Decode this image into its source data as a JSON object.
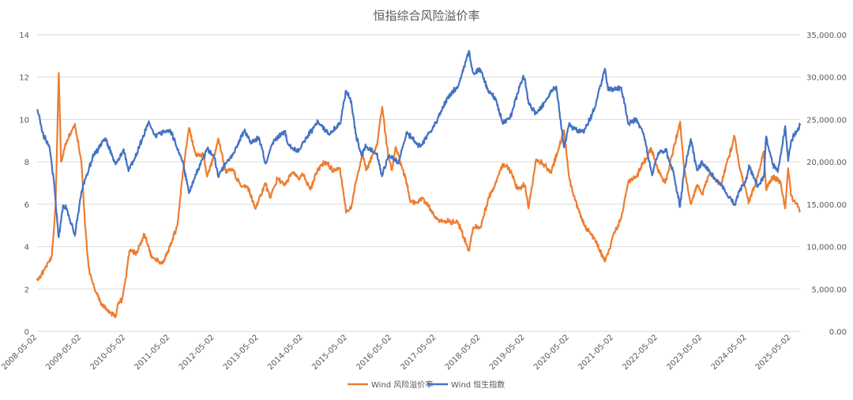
{
  "chart_data": {
    "type": "line",
    "title": "恒指综合风险溢价率",
    "y_left": {
      "min": 0,
      "max": 14,
      "step": 2,
      "tick_labels": [
        "0",
        "2",
        "4",
        "6",
        "8",
        "10",
        "12",
        "14"
      ]
    },
    "y_right": {
      "min": 0,
      "max": 35000,
      "step": 5000,
      "tick_labels": [
        "0.00",
        "5,000.00",
        "10,000.00",
        "15,000.00",
        "20,000.00",
        "25,000.00",
        "30,000.00",
        "35,000.00"
      ]
    },
    "x_tick_labels": [
      "2008-05-02",
      "2009-05-02",
      "2010-05-02",
      "2011-05-02",
      "2012-05-02",
      "2013-05-02",
      "2014-05-02",
      "2015-05-02",
      "2016-05-02",
      "2017-05-02",
      "2018-05-02",
      "2019-05-02",
      "2020-05-02",
      "2021-05-02",
      "2022-05-02",
      "2023-05-02",
      "2024-05-02",
      "2025-05-02"
    ],
    "x_range": [
      "2008-05-02",
      "2025-07-15"
    ],
    "grid": true,
    "legend_position": "bottom",
    "series": [
      {
        "name": "Wind 风险溢价率",
        "axis": "left",
        "color": "#ED7D31",
        "points": [
          [
            "2008-05-02",
            2.4
          ],
          [
            "2008-07-01",
            2.9
          ],
          [
            "2008-09-01",
            3.6
          ],
          [
            "2008-10-01",
            5.9
          ],
          [
            "2008-10-27",
            12.2
          ],
          [
            "2008-11-15",
            8.0
          ],
          [
            "2009-01-01",
            9.0
          ],
          [
            "2009-03-09",
            9.8
          ],
          [
            "2009-05-02",
            8.0
          ],
          [
            "2009-06-01",
            5.0
          ],
          [
            "2009-07-01",
            3.0
          ],
          [
            "2009-08-01",
            2.3
          ],
          [
            "2009-10-01",
            1.4
          ],
          [
            "2009-12-01",
            1.0
          ],
          [
            "2010-02-08",
            0.7
          ],
          [
            "2010-03-01",
            1.3
          ],
          [
            "2010-04-01",
            1.5
          ],
          [
            "2010-05-02",
            2.5
          ],
          [
            "2010-06-01",
            3.8
          ],
          [
            "2010-08-01",
            3.7
          ],
          [
            "2010-10-01",
            4.6
          ],
          [
            "2010-12-01",
            3.5
          ],
          [
            "2011-03-01",
            3.2
          ],
          [
            "2011-05-02",
            4.0
          ],
          [
            "2011-07-01",
            5.0
          ],
          [
            "2011-08-15",
            7.5
          ],
          [
            "2011-10-04",
            9.6
          ],
          [
            "2011-12-01",
            8.3
          ],
          [
            "2012-02-01",
            8.3
          ],
          [
            "2012-03-01",
            7.3
          ],
          [
            "2012-05-02",
            8.3
          ],
          [
            "2012-06-01",
            9.1
          ],
          [
            "2012-08-01",
            7.6
          ],
          [
            "2012-10-01",
            7.6
          ],
          [
            "2012-12-01",
            6.9
          ],
          [
            "2013-02-01",
            6.8
          ],
          [
            "2013-04-01",
            5.8
          ],
          [
            "2013-05-02",
            6.2
          ],
          [
            "2013-06-25",
            7.0
          ],
          [
            "2013-08-01",
            6.3
          ],
          [
            "2013-10-01",
            7.2
          ],
          [
            "2013-12-01",
            6.9
          ],
          [
            "2014-02-01",
            7.5
          ],
          [
            "2014-04-01",
            7.2
          ],
          [
            "2014-05-02",
            7.4
          ],
          [
            "2014-07-01",
            6.7
          ],
          [
            "2014-09-01",
            7.7
          ],
          [
            "2014-11-01",
            8.0
          ],
          [
            "2015-01-01",
            7.6
          ],
          [
            "2015-03-01",
            7.7
          ],
          [
            "2015-04-20",
            5.6
          ],
          [
            "2015-06-01",
            5.8
          ],
          [
            "2015-07-08",
            7.0
          ],
          [
            "2015-09-01",
            8.4
          ],
          [
            "2015-10-01",
            7.6
          ],
          [
            "2016-01-01",
            8.8
          ],
          [
            "2016-02-11",
            10.6
          ],
          [
            "2016-04-01",
            8.3
          ],
          [
            "2016-05-02",
            7.6
          ],
          [
            "2016-06-01",
            8.7
          ],
          [
            "2016-09-01",
            7.0
          ],
          [
            "2016-10-01",
            6.1
          ],
          [
            "2016-12-01",
            6.1
          ],
          [
            "2017-01-01",
            6.3
          ],
          [
            "2017-03-01",
            5.9
          ],
          [
            "2017-05-02",
            5.3
          ],
          [
            "2017-08-01",
            5.2
          ],
          [
            "2017-11-01",
            5.1
          ],
          [
            "2018-01-26",
            3.8
          ],
          [
            "2018-03-01",
            4.9
          ],
          [
            "2018-05-02",
            4.9
          ],
          [
            "2018-07-01",
            6.2
          ],
          [
            "2018-09-01",
            7.0
          ],
          [
            "2018-10-30",
            7.9
          ],
          [
            "2019-01-01",
            7.6
          ],
          [
            "2019-03-01",
            6.7
          ],
          [
            "2019-05-02",
            6.9
          ],
          [
            "2019-06-01",
            5.8
          ],
          [
            "2019-08-01",
            8.1
          ],
          [
            "2019-10-01",
            7.9
          ],
          [
            "2019-12-01",
            7.5
          ],
          [
            "2020-02-01",
            8.6
          ],
          [
            "2020-03-19",
            9.5
          ],
          [
            "2020-05-02",
            7.2
          ],
          [
            "2020-06-01",
            6.5
          ],
          [
            "2020-09-01",
            5.0
          ],
          [
            "2020-12-01",
            4.3
          ],
          [
            "2021-02-18",
            3.3
          ],
          [
            "2021-04-01",
            3.9
          ],
          [
            "2021-05-02",
            4.6
          ],
          [
            "2021-07-01",
            5.3
          ],
          [
            "2021-09-01",
            7.1
          ],
          [
            "2021-11-01",
            7.3
          ],
          [
            "2022-01-01",
            7.9
          ],
          [
            "2022-03-01",
            8.6
          ],
          [
            "2022-03-15",
            8.5
          ],
          [
            "2022-05-02",
            7.6
          ],
          [
            "2022-07-01",
            7.0
          ],
          [
            "2022-10-31",
            9.9
          ],
          [
            "2022-12-01",
            7.8
          ],
          [
            "2023-01-27",
            6.0
          ],
          [
            "2023-03-20",
            6.9
          ],
          [
            "2023-05-02",
            6.5
          ],
          [
            "2023-07-01",
            7.5
          ],
          [
            "2023-10-01",
            6.9
          ],
          [
            "2024-01-22",
            9.2
          ],
          [
            "2024-03-01",
            7.8
          ],
          [
            "2024-05-02",
            6.5
          ],
          [
            "2024-05-20",
            6.1
          ],
          [
            "2024-08-01",
            7.3
          ],
          [
            "2024-09-20",
            8.5
          ],
          [
            "2024-10-08",
            6.7
          ],
          [
            "2024-12-01",
            7.3
          ],
          [
            "2025-02-01",
            7.1
          ],
          [
            "2025-03-14",
            5.8
          ],
          [
            "2025-04-08",
            7.7
          ],
          [
            "2025-05-02",
            6.4
          ],
          [
            "2025-07-15",
            5.7
          ]
        ]
      },
      {
        "name": "Wind 恒生指数",
        "axis": "right",
        "color": "#4472C4",
        "points": [
          [
            "2008-05-02",
            26200
          ],
          [
            "2008-06-15",
            23500
          ],
          [
            "2008-07-15",
            22500
          ],
          [
            "2008-08-15",
            21500
          ],
          [
            "2008-09-15",
            18000
          ],
          [
            "2008-10-27",
            11100
          ],
          [
            "2008-12-01",
            14800
          ],
          [
            "2009-01-01",
            14500
          ],
          [
            "2009-03-09",
            11300
          ],
          [
            "2009-05-02",
            16500
          ],
          [
            "2009-06-01",
            17900
          ],
          [
            "2009-08-01",
            20500
          ],
          [
            "2009-11-15",
            22800
          ],
          [
            "2010-02-08",
            19700
          ],
          [
            "2010-04-15",
            21500
          ],
          [
            "2010-05-25",
            18900
          ],
          [
            "2010-08-01",
            21000
          ],
          [
            "2010-11-08",
            24800
          ],
          [
            "2011-01-01",
            23000
          ],
          [
            "2011-03-01",
            23500
          ],
          [
            "2011-05-02",
            23800
          ],
          [
            "2011-08-15",
            20000
          ],
          [
            "2011-10-04",
            16300
          ],
          [
            "2011-12-01",
            18500
          ],
          [
            "2012-03-01",
            21500
          ],
          [
            "2012-05-02",
            20500
          ],
          [
            "2012-06-01",
            18300
          ],
          [
            "2012-08-01",
            19800
          ],
          [
            "2012-10-01",
            21000
          ],
          [
            "2013-01-02",
            23600
          ],
          [
            "2013-03-01",
            22200
          ],
          [
            "2013-05-02",
            22900
          ],
          [
            "2013-06-25",
            19800
          ],
          [
            "2013-09-01",
            22500
          ],
          [
            "2013-12-01",
            23500
          ],
          [
            "2014-01-01",
            22000
          ],
          [
            "2014-03-14",
            21200
          ],
          [
            "2014-05-02",
            22300
          ],
          [
            "2014-07-01",
            23500
          ],
          [
            "2014-09-01",
            24800
          ],
          [
            "2014-12-01",
            23300
          ],
          [
            "2015-03-01",
            24500
          ],
          [
            "2015-04-20",
            28400
          ],
          [
            "2015-06-01",
            27200
          ],
          [
            "2015-07-08",
            23300
          ],
          [
            "2015-08-24",
            20800
          ],
          [
            "2015-10-01",
            21800
          ],
          [
            "2016-01-01",
            21000
          ],
          [
            "2016-02-11",
            18300
          ],
          [
            "2016-04-01",
            20700
          ],
          [
            "2016-05-02",
            20600
          ],
          [
            "2016-06-24",
            19800
          ],
          [
            "2016-09-01",
            23500
          ],
          [
            "2016-12-01",
            22000
          ],
          [
            "2017-01-01",
            22000
          ],
          [
            "2017-05-02",
            24700
          ],
          [
            "2017-08-01",
            27500
          ],
          [
            "2017-11-01",
            29000
          ],
          [
            "2018-01-26",
            33100
          ],
          [
            "2018-03-01",
            30500
          ],
          [
            "2018-05-02",
            30900
          ],
          [
            "2018-07-01",
            28500
          ],
          [
            "2018-09-01",
            27500
          ],
          [
            "2018-10-30",
            24600
          ],
          [
            "2019-01-01",
            25300
          ],
          [
            "2019-04-15",
            30000
          ],
          [
            "2019-05-02",
            29800
          ],
          [
            "2019-06-01",
            26900
          ],
          [
            "2019-08-01",
            25700
          ],
          [
            "2019-10-01",
            26700
          ],
          [
            "2019-12-01",
            28200
          ],
          [
            "2020-01-15",
            28900
          ],
          [
            "2020-03-19",
            21700
          ],
          [
            "2020-05-02",
            24600
          ],
          [
            "2020-06-01",
            24000
          ],
          [
            "2020-09-01",
            23500
          ],
          [
            "2020-12-01",
            26500
          ],
          [
            "2021-02-18",
            31000
          ],
          [
            "2021-03-15",
            28700
          ],
          [
            "2021-05-02",
            28500
          ],
          [
            "2021-07-01",
            28800
          ],
          [
            "2021-09-01",
            24500
          ],
          [
            "2021-11-01",
            25000
          ],
          [
            "2022-01-01",
            23400
          ],
          [
            "2022-03-15",
            18400
          ],
          [
            "2022-05-02",
            21000
          ],
          [
            "2022-07-01",
            21500
          ],
          [
            "2022-09-01",
            19000
          ],
          [
            "2022-10-31",
            14700
          ],
          [
            "2022-12-01",
            18700
          ],
          [
            "2023-01-27",
            22700
          ],
          [
            "2023-03-20",
            19000
          ],
          [
            "2023-05-02",
            19900
          ],
          [
            "2023-07-01",
            18800
          ],
          [
            "2023-10-01",
            17300
          ],
          [
            "2024-01-22",
            14900
          ],
          [
            "2024-03-01",
            16600
          ],
          [
            "2024-05-02",
            18000
          ],
          [
            "2024-05-20",
            19600
          ],
          [
            "2024-08-01",
            17100
          ],
          [
            "2024-09-20",
            18200
          ],
          [
            "2024-10-08",
            23000
          ],
          [
            "2024-12-01",
            19700
          ],
          [
            "2025-01-13",
            18800
          ],
          [
            "2025-03-14",
            24200
          ],
          [
            "2025-04-08",
            20100
          ],
          [
            "2025-05-02",
            22500
          ],
          [
            "2025-07-15",
            24300
          ]
        ]
      }
    ]
  }
}
